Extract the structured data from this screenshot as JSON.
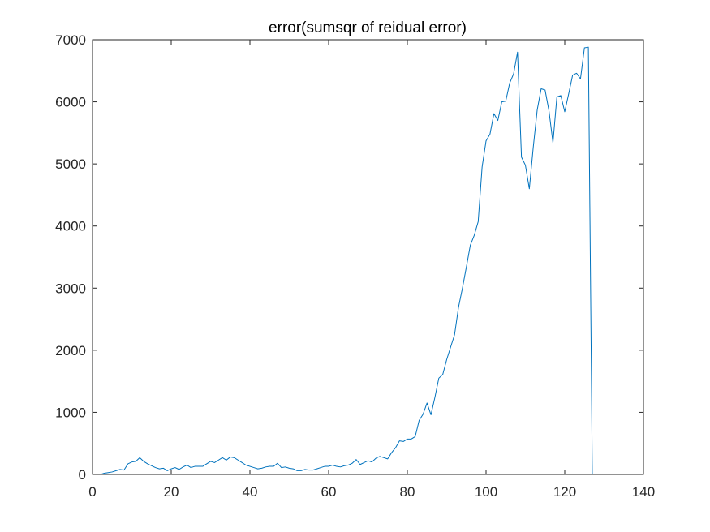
{
  "chart_data": {
    "type": "line",
    "title": "error(sumsqr of reidual error)",
    "xlabel": "",
    "ylabel": "",
    "xlim": [
      0,
      140
    ],
    "ylim": [
      0,
      7000
    ],
    "xticks": [
      0,
      20,
      40,
      60,
      80,
      100,
      120,
      140
    ],
    "yticks": [
      0,
      1000,
      2000,
      3000,
      4000,
      5000,
      6000,
      7000
    ],
    "xtick_labels": [
      "0",
      "20",
      "40",
      "60",
      "80",
      "100",
      "120",
      "140"
    ],
    "ytick_labels": [
      "0",
      "1000",
      "2000",
      "3000",
      "4000",
      "5000",
      "6000",
      "7000"
    ],
    "grid": false,
    "legend": "none",
    "line_color": "#0072BD",
    "series": [
      {
        "x": [
          1,
          2,
          3,
          4,
          5,
          6,
          7,
          8,
          9,
          10,
          11,
          12,
          13,
          14,
          15,
          16,
          17,
          18,
          19,
          20,
          21,
          22,
          23,
          24,
          25,
          26,
          27,
          28,
          29,
          30,
          31,
          32,
          33,
          34,
          35,
          36,
          37,
          38,
          39,
          40,
          41,
          42,
          43,
          44,
          45,
          46,
          47,
          48,
          49,
          50,
          51,
          52,
          53,
          54,
          55,
          56,
          57,
          58,
          59,
          60,
          61,
          62,
          63,
          64,
          65,
          66,
          67,
          68,
          69,
          70,
          71,
          72,
          73,
          74,
          75,
          76,
          77,
          78,
          79,
          80,
          81,
          82,
          83,
          84,
          85,
          86,
          87,
          88,
          89,
          90,
          91,
          92,
          93,
          94,
          95,
          96,
          97,
          98,
          99,
          100,
          101,
          102,
          103,
          104,
          105,
          106,
          107,
          108,
          109,
          110,
          111,
          112,
          113,
          114,
          115,
          116,
          117,
          118,
          119,
          120,
          121,
          122,
          123,
          124,
          125,
          126,
          127
        ],
        "values": [
          0,
          0,
          20,
          30,
          40,
          60,
          80,
          70,
          170,
          200,
          210,
          270,
          210,
          170,
          140,
          110,
          90,
          100,
          60,
          90,
          110,
          80,
          120,
          150,
          110,
          130,
          130,
          130,
          170,
          210,
          190,
          230,
          270,
          230,
          280,
          270,
          230,
          190,
          150,
          130,
          110,
          90,
          100,
          120,
          130,
          130,
          180,
          110,
          120,
          100,
          90,
          60,
          60,
          80,
          70,
          70,
          90,
          110,
          130,
          130,
          150,
          130,
          120,
          140,
          150,
          180,
          240,
          160,
          190,
          220,
          200,
          260,
          290,
          270,
          250,
          350,
          430,
          540,
          530,
          570,
          570,
          610,
          870,
          970,
          1150,
          960,
          1240,
          1550,
          1610,
          1850,
          2050,
          2250,
          2690,
          3000,
          3340,
          3690,
          3850,
          4070,
          4950,
          5370,
          5480,
          5810,
          5700,
          6000,
          6010,
          6300,
          6450,
          6800,
          5110,
          4980,
          4600,
          5270,
          5870,
          6210,
          6190,
          5850,
          5340,
          6080,
          6100,
          5840,
          6130,
          6430,
          6460,
          6370,
          6870,
          6880,
          0
        ],
        "baseline": {
          "x": [
            1,
            127
          ],
          "values": [
            0,
            0
          ]
        }
      }
    ]
  }
}
